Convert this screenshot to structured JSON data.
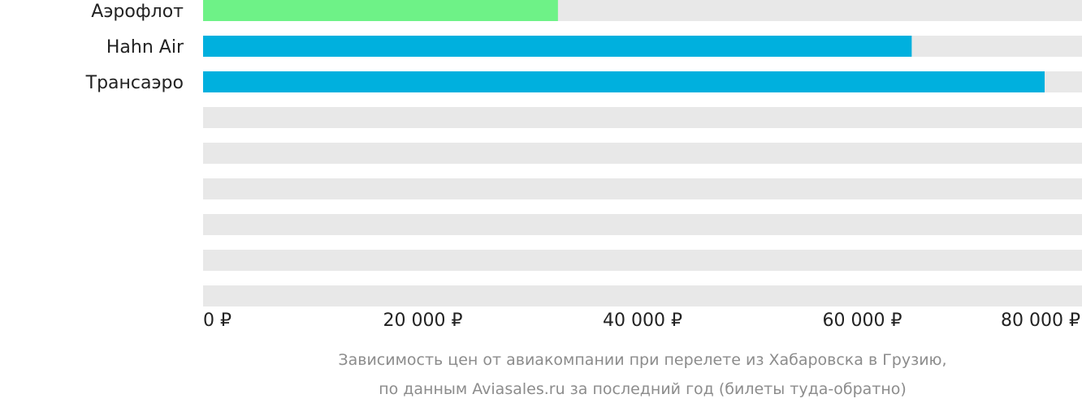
{
  "colors": {
    "track": "#e8e8e8",
    "cheapest": "#6ef287",
    "other": "#00b0de"
  },
  "chart_data": {
    "type": "bar",
    "orientation": "horizontal",
    "categories": [
      "Аэрофлот",
      "Hahn Air",
      "Трансаэро",
      "",
      "",
      "",
      "",
      "",
      ""
    ],
    "values": [
      32300,
      64500,
      76600,
      null,
      null,
      null,
      null,
      null,
      null
    ],
    "bar_colors": [
      "cheapest",
      "other",
      "other",
      null,
      null,
      null,
      null,
      null,
      null
    ],
    "xlim": [
      0,
      80000
    ],
    "xticks": [
      0,
      20000,
      40000,
      60000,
      80000
    ],
    "xtick_labels": [
      "0 ₽",
      "20 000 ₽",
      "40 000 ₽",
      "60 000 ₽",
      "80 000 ₽"
    ],
    "grid": false
  },
  "caption": {
    "line1": "Зависимость цен от авиакомпании при перелете из Хабаровска в Грузию,",
    "line2": "по данным Aviasales.ru за последний год (билеты туда-обратно)"
  }
}
